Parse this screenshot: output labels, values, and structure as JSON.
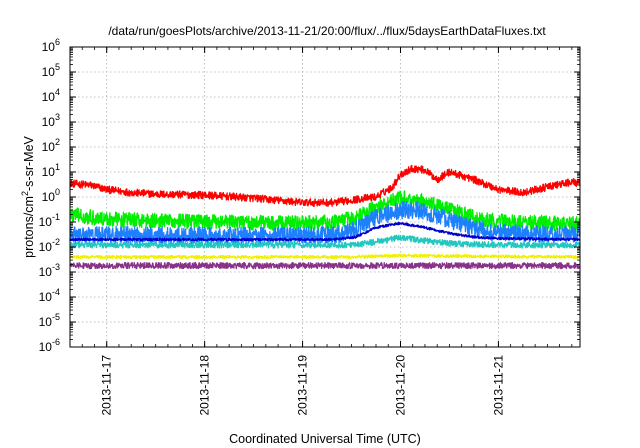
{
  "chart_data": {
    "type": "line",
    "title": "/data/run/goesPlots/archive/2013-11-21/20:00/flux/../flux/5daysEarthDataFluxes.txt",
    "xlabel": "Coordinated Universal Time (UTC)",
    "ylabel": {
      "prefix": "protons/cm",
      "superscript": "2",
      "suffix": "-s-sr-MeV"
    },
    "scale_y": "log",
    "ylim": [
      1e-06,
      1000000.0
    ],
    "xlim": [
      "2013-11-16 15:00",
      "2013-11-21 20:00"
    ],
    "grid": true,
    "y_ticks": [
      {
        "value": 1e-06,
        "base": "10",
        "exp": "-6"
      },
      {
        "value": 1e-05,
        "base": "10",
        "exp": "-5"
      },
      {
        "value": 0.0001,
        "base": "10",
        "exp": "-4"
      },
      {
        "value": 0.001,
        "base": "10",
        "exp": "-3"
      },
      {
        "value": 0.01,
        "base": "10",
        "exp": "-2"
      },
      {
        "value": 0.1,
        "base": "10",
        "exp": "-1"
      },
      {
        "value": 1,
        "base": "10",
        "exp": "0"
      },
      {
        "value": 10.0,
        "base": "10",
        "exp": "1"
      },
      {
        "value": 100.0,
        "base": "10",
        "exp": "2"
      },
      {
        "value": 1000.0,
        "base": "10",
        "exp": "3"
      },
      {
        "value": 10000.0,
        "base": "10",
        "exp": "4"
      },
      {
        "value": 100000.0,
        "base": "10",
        "exp": "5"
      },
      {
        "value": 1000000.0,
        "base": "10",
        "exp": "6"
      }
    ],
    "x_ticks": [
      {
        "label": "2013-11-17",
        "date": "2013-11-17 00:00"
      },
      {
        "label": "2013-11-18",
        "date": "2013-11-18 00:00"
      },
      {
        "label": "2013-11-19",
        "date": "2013-11-19 00:00"
      },
      {
        "label": "2013-11-20",
        "date": "2013-11-20 00:00"
      },
      {
        "label": "2013-11-21",
        "date": "2013-11-21 00:00"
      }
    ],
    "series": [
      {
        "color": "#ff0000",
        "jitter": 0.15,
        "x": [
          "2013-11-16 15:00",
          "2013-11-16 20:00",
          "2013-11-17 00:00",
          "2013-11-17 06:00",
          "2013-11-17 12:00",
          "2013-11-18 00:00",
          "2013-11-18 12:00",
          "2013-11-19 00:00",
          "2013-11-19 08:00",
          "2013-11-19 13:00",
          "2013-11-19 18:00",
          "2013-11-19 22:00",
          "2013-11-20 00:00",
          "2013-11-20 03:00",
          "2013-11-20 06:00",
          "2013-11-20 09:00",
          "2013-11-20 12:00",
          "2013-11-20 18:00",
          "2013-11-21 00:00",
          "2013-11-21 06:00",
          "2013-11-21 12:00",
          "2013-11-21 18:00",
          "2013-11-21 20:00"
        ],
        "y": [
          3.5,
          3.0,
          2.0,
          1.5,
          1.3,
          1.2,
          0.9,
          0.6,
          0.6,
          0.8,
          1.0,
          2.5,
          8,
          14,
          12,
          5,
          10,
          5,
          2,
          1.5,
          2.5,
          4,
          3.5
        ]
      },
      {
        "color": "#00ee00",
        "jitter": 0.3,
        "x": [
          "2013-11-16 15:00",
          "2013-11-17 00:00",
          "2013-11-18 00:00",
          "2013-11-19 00:00",
          "2013-11-19 08:00",
          "2013-11-19 13:00",
          "2013-11-19 18:00",
          "2013-11-20 00:00",
          "2013-11-20 04:00",
          "2013-11-20 08:00",
          "2013-11-20 14:00",
          "2013-11-20 20:00",
          "2013-11-21 04:00",
          "2013-11-21 12:00",
          "2013-11-21 20:00"
        ],
        "y": [
          0.2,
          0.13,
          0.1,
          0.09,
          0.1,
          0.15,
          0.4,
          0.9,
          0.8,
          0.5,
          0.25,
          0.12,
          0.1,
          0.09,
          0.08
        ]
      },
      {
        "color": "#1e7fff",
        "jitter": 0.35,
        "x": [
          "2013-11-16 15:00",
          "2013-11-17 00:00",
          "2013-11-18 00:00",
          "2013-11-19 00:00",
          "2013-11-19 08:00",
          "2013-11-19 13:00",
          "2013-11-19 18:00",
          "2013-11-20 00:00",
          "2013-11-20 04:00",
          "2013-11-20 10:00",
          "2013-11-20 16:00",
          "2013-11-20 22:00",
          "2013-11-21 06:00",
          "2013-11-21 20:00"
        ],
        "y": [
          0.03,
          0.03,
          0.028,
          0.028,
          0.03,
          0.05,
          0.15,
          0.3,
          0.3,
          0.15,
          0.07,
          0.04,
          0.035,
          0.03
        ]
      },
      {
        "color": "#0000cc",
        "jitter": 0.05,
        "x": [
          "2013-11-16 15:00",
          "2013-11-17 00:00",
          "2013-11-18 00:00",
          "2013-11-19 00:00",
          "2013-11-19 08:00",
          "2013-11-19 13:00",
          "2013-11-19 18:00",
          "2013-11-20 00:00",
          "2013-11-20 06:00",
          "2013-11-20 12:00",
          "2013-11-20 18:00",
          "2013-11-21 00:00",
          "2013-11-21 20:00"
        ],
        "y": [
          0.02,
          0.02,
          0.02,
          0.02,
          0.02,
          0.025,
          0.06,
          0.09,
          0.06,
          0.035,
          0.025,
          0.022,
          0.02
        ]
      },
      {
        "color": "#20c8c0",
        "jitter": 0.12,
        "x": [
          "2013-11-16 15:00",
          "2013-11-17 00:00",
          "2013-11-18 00:00",
          "2013-11-19 00:00",
          "2013-11-19 12:00",
          "2013-11-19 18:00",
          "2013-11-20 00:00",
          "2013-11-20 06:00",
          "2013-11-20 12:00",
          "2013-11-21 00:00",
          "2013-11-21 20:00"
        ],
        "y": [
          0.012,
          0.012,
          0.012,
          0.012,
          0.012,
          0.016,
          0.024,
          0.018,
          0.014,
          0.012,
          0.012
        ]
      },
      {
        "color": "#f0f000",
        "jitter": 0.06,
        "x": [
          "2013-11-16 15:00",
          "2013-11-19 12:00",
          "2013-11-20 00:00",
          "2013-11-21 20:00"
        ],
        "y": [
          0.004,
          0.004,
          0.0045,
          0.004
        ]
      },
      {
        "color": "#883388",
        "jitter": 0.12,
        "x": [
          "2013-11-16 15:00",
          "2013-11-21 20:00"
        ],
        "y": [
          0.0018,
          0.0018
        ]
      }
    ]
  }
}
